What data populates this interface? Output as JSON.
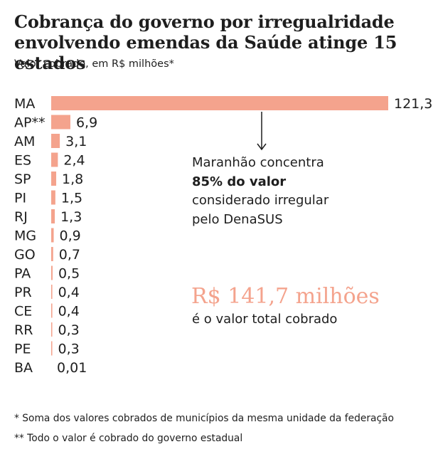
{
  "title": "Cobrança do governo por irregualridade envolvendo emendas da Saúde atinge 15 estados",
  "subtitle": "Valor cobrado, em R$ milhões*",
  "annotation": {
    "line1": "Maranhão concentra",
    "line2": "85% do valor",
    "line3": "considerado irregular",
    "line4": "pelo DenaSUS"
  },
  "total": {
    "value": "R$ 141,7 milhões",
    "caption": "é o valor total cobrado"
  },
  "footnotes": {
    "f1": "* Soma dos valores cobrados de municípios da mesma unidade da federação",
    "f2": "** Todo o valor é cobrado do governo estadual"
  },
  "colors": {
    "bar": "#f4a38d",
    "highlight_text": "#f4a38d",
    "text": "#1e1e1e"
  },
  "chart_data": {
    "type": "bar",
    "orientation": "horizontal",
    "categories": [
      "MA",
      "AP**",
      "AM",
      "ES",
      "SP",
      "PI",
      "RJ",
      "MG",
      "GO",
      "PA",
      "PR",
      "CE",
      "RR",
      "PE",
      "BA"
    ],
    "values": [
      121.3,
      6.9,
      3.1,
      2.4,
      1.8,
      1.5,
      1.3,
      0.9,
      0.7,
      0.5,
      0.4,
      0.4,
      0.3,
      0.3,
      0.01
    ],
    "value_labels": [
      "121,3",
      "6,9",
      "3,1",
      "2,4",
      "1,8",
      "1,5",
      "1,3",
      "0,9",
      "0,7",
      "0,5",
      "0,4",
      "0,4",
      "0,3",
      "0,3",
      "0,01"
    ],
    "grid": false,
    "legend": "none"
  }
}
